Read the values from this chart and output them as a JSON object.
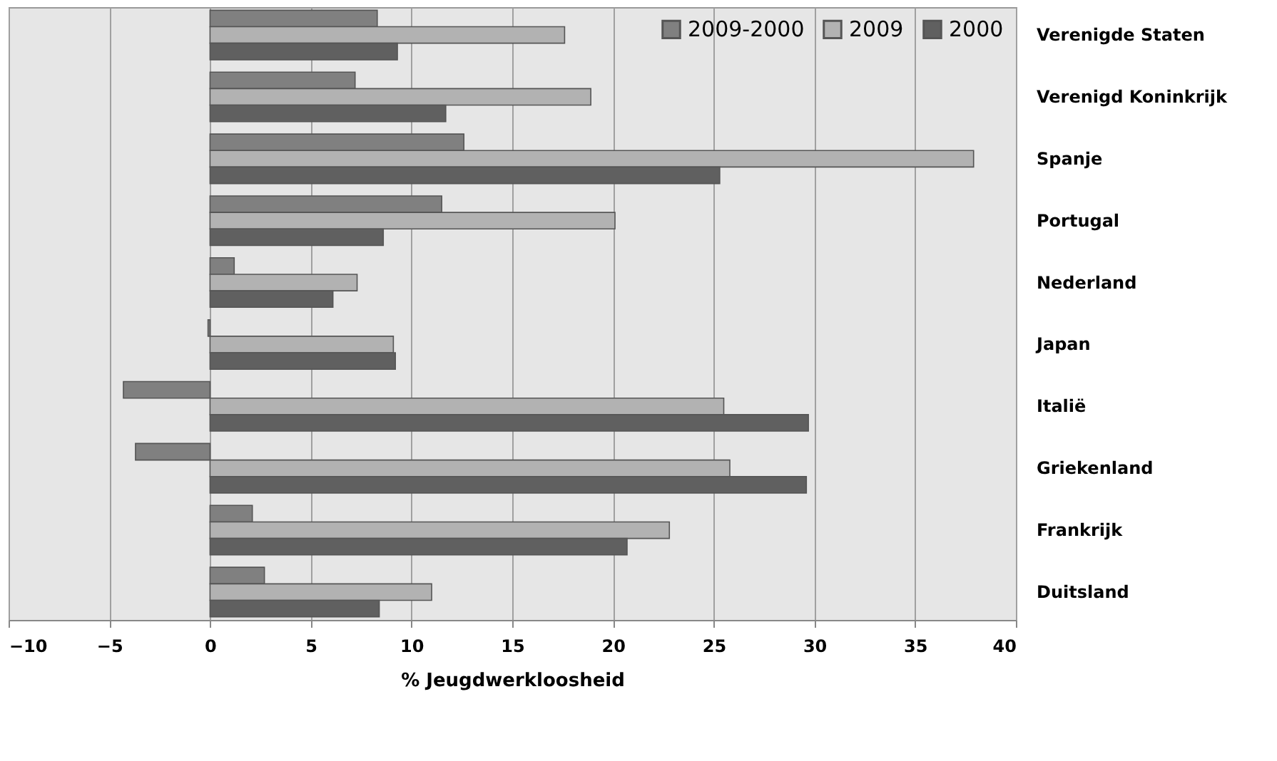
{
  "chart_data": {
    "type": "bar",
    "orientation": "horizontal",
    "xlabel": "% Jeugdwerkloosheid",
    "categories": [
      "Verenigde Staten",
      "Verenigd Koninkrijk",
      "Spanje",
      "Portugal",
      "Nederland",
      "Japan",
      "Italië",
      "Griekenland",
      "Frankrijk",
      "Duitsland"
    ],
    "series": [
      {
        "name": "2009-2000",
        "color": "#808080",
        "values": [
          8.3,
          7.2,
          12.6,
          11.5,
          1.2,
          -0.1,
          -4.3,
          -3.7,
          2.1,
          2.7
        ]
      },
      {
        "name": "2009",
        "color": "#b2b2b2",
        "values": [
          17.6,
          18.9,
          37.9,
          20.1,
          7.3,
          9.1,
          25.5,
          25.8,
          22.8,
          11.0
        ]
      },
      {
        "name": "2000",
        "color": "#606060",
        "values": [
          9.3,
          11.7,
          25.3,
          8.6,
          6.1,
          9.2,
          29.7,
          29.6,
          20.7,
          8.4
        ]
      }
    ],
    "xlim": [
      -10,
      40
    ],
    "xticks": [
      -10,
      -5,
      0,
      5,
      10,
      15,
      20,
      25,
      30,
      35,
      40
    ],
    "grid": "x",
    "legend": "top right"
  }
}
